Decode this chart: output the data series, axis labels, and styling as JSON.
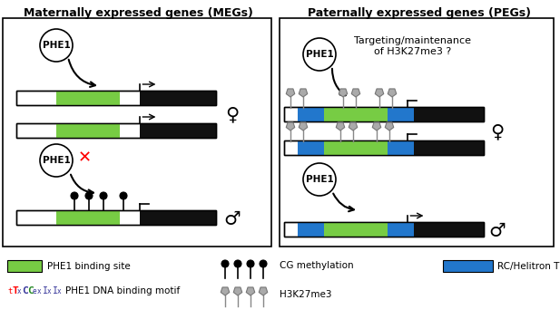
{
  "title_left": "Maternally expressed genes (MEGs)",
  "title_right": "Paternally expressed genes (PEGs)",
  "bg_color": "#ffffff",
  "gene_bar_green": "#77cc44",
  "gene_bar_blue": "#2277cc",
  "female_symbol": "♀",
  "male_symbol": "♂",
  "legend_items": {
    "phe1_binding_site": "PHE1 binding site",
    "phe1_dna_motif": "PHE1 DNA binding motif",
    "cg_methylation": "CG methylation",
    "h3k27me3": "H3K27me3",
    "rc_helitron": "RC/Helitron TE"
  },
  "targeting_text": "Targeting/maintenance\nof H3K27me3 ?"
}
